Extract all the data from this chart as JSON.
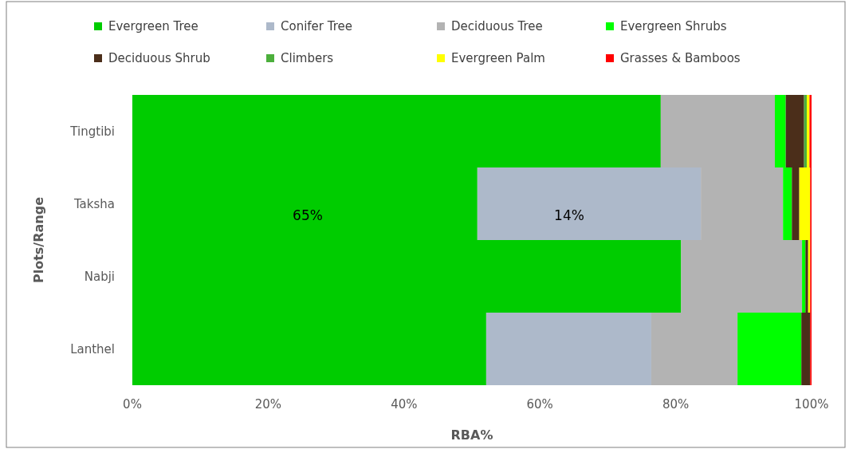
{
  "chart_data": {
    "type": "bar",
    "orientation": "horizontal",
    "stacked": true,
    "categories": [
      "Tingtibi",
      "Taksha",
      "Nabji",
      "Lanthel"
    ],
    "series": [
      {
        "name": "Evergreen Tree",
        "color": "#00cc00",
        "values": [
          77.8,
          50.8,
          80.8,
          52.1
        ]
      },
      {
        "name": "Conifer Tree",
        "color": "#adb9ca",
        "values": [
          null,
          32.9,
          null,
          24.3
        ]
      },
      {
        "name": "Deciduous Tree",
        "color": "#b3b3b3",
        "values": [
          16.8,
          12.1,
          17.8,
          12.7
        ]
      },
      {
        "name": "Evergreen Shrubs",
        "color": "#00ff00",
        "values": [
          1.6,
          1.3,
          0.5,
          9.4
        ]
      },
      {
        "name": "Deciduous Shrub",
        "color": "#4b2e1a",
        "values": [
          2.7,
          1.1,
          0.4,
          1.3
        ]
      },
      {
        "name": "Climbers",
        "color": "#4caf3c",
        "values": [
          0.4,
          null,
          null,
          null
        ]
      },
      {
        "name": "Evergreen Palm",
        "color": "#ffff00",
        "values": [
          0.4,
          1.6,
          0.3,
          null
        ]
      },
      {
        "name": "Grasses & Bamboos",
        "color": "#ff0000",
        "values": [
          0.3,
          0.2,
          0.2,
          0.2
        ]
      }
    ],
    "xlim": [
      0,
      100
    ],
    "xticks": [
      {
        "value": 0,
        "label": "0%"
      },
      {
        "value": 20,
        "label": "20%"
      },
      {
        "value": 40,
        "label": "40%"
      },
      {
        "value": 60,
        "label": "60%"
      },
      {
        "value": 80,
        "label": "80%"
      },
      {
        "value": 100,
        "label": "100%"
      }
    ],
    "xlabel": "RBA%",
    "ylabel": "Plots/Range",
    "legend": "top",
    "annotations": [
      "65%",
      "14%"
    ]
  }
}
